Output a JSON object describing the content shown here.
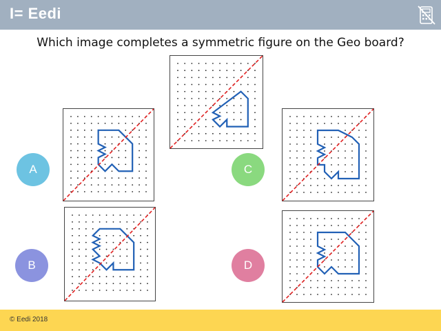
{
  "header": {
    "brand": "I= Eedi",
    "calculator_icon": "calculator-crossed-icon",
    "background": "#a1b0c0"
  },
  "question": {
    "text": "Which image completes a symmetric figure on the Geo board?"
  },
  "options": [
    {
      "letter": "A",
      "color": "#6dc3e2"
    },
    {
      "letter": "B",
      "color": "#8b93df"
    },
    {
      "letter": "C",
      "color": "#8ad97f"
    },
    {
      "letter": "D",
      "color": "#e07fa0"
    }
  ],
  "colors": {
    "shape": "#2160b5",
    "mirror_line": "#e02020",
    "dots": "#222222",
    "footer": "#fdd652"
  },
  "footer": {
    "copyright": "© Eedi 2018"
  }
}
